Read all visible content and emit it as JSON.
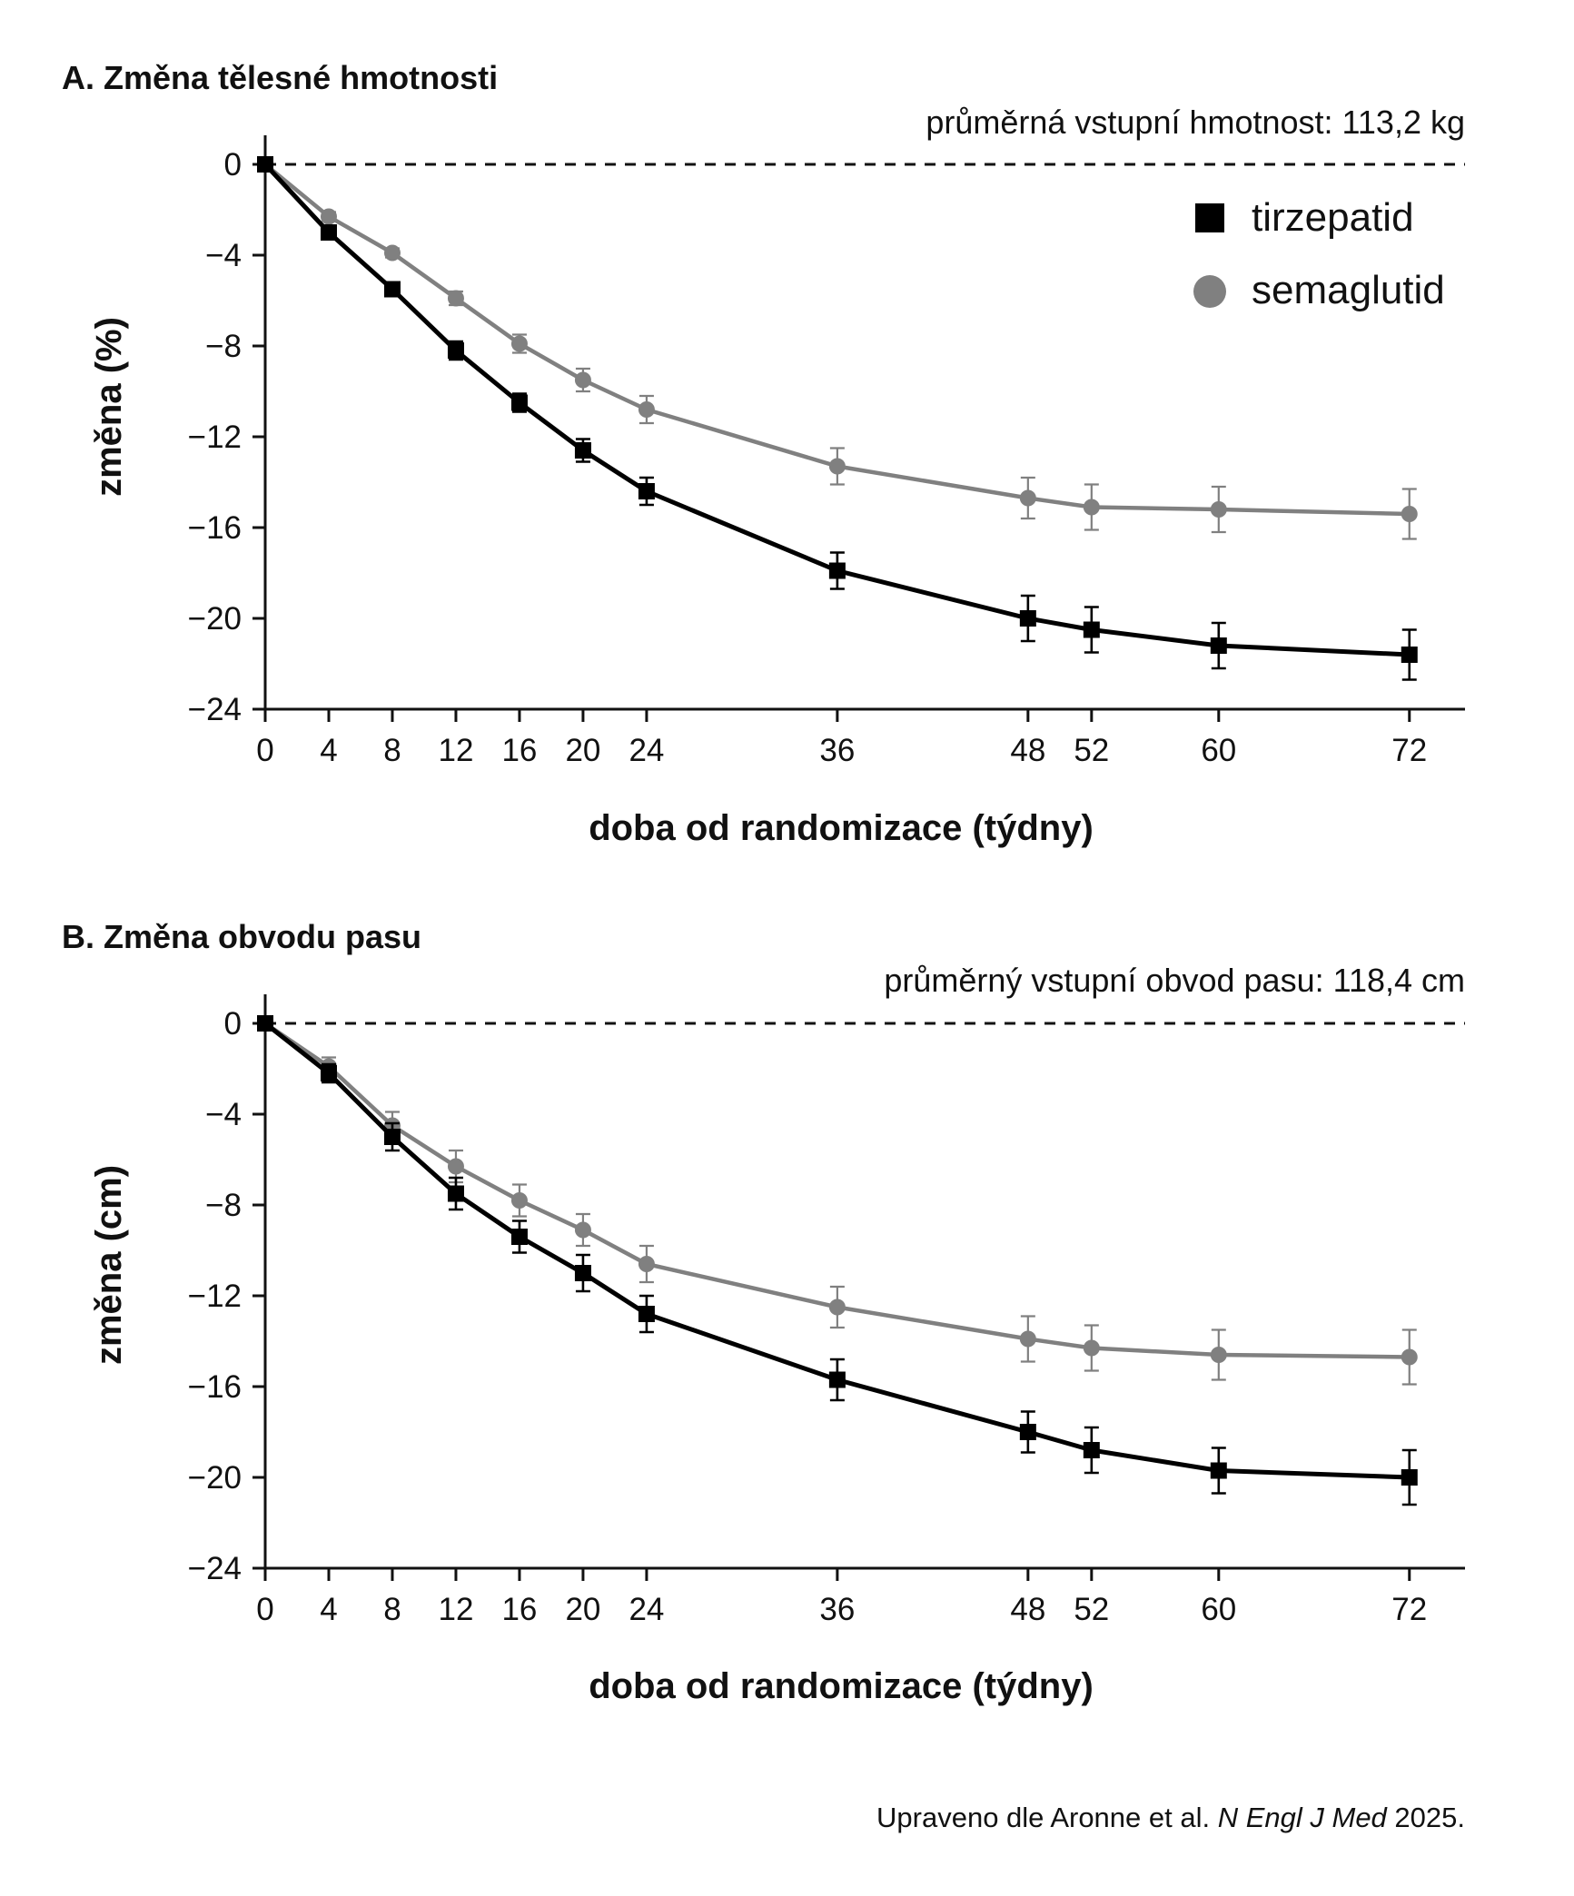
{
  "chart_data": [
    {
      "type": "line",
      "title": "A. Změna tělesné hmotnosti",
      "subtitle": "průměrná vstupní hmotnost: 113,2 kg",
      "xlabel": "doba od randomizace (týdny)",
      "ylabel": "změna (%)",
      "x_ticks": [
        0,
        4,
        8,
        12,
        16,
        20,
        24,
        36,
        48,
        52,
        60,
        72
      ],
      "y_ticks": [
        0,
        -4,
        -8,
        -12,
        -16,
        -20,
        -24
      ],
      "y_tick_labels": [
        "0",
        "−4",
        "−8",
        "−12",
        "−16",
        "−20",
        "−24"
      ],
      "xlim": [
        0,
        75.5
      ],
      "ylim": [
        -24,
        0
      ],
      "reference_line": 0,
      "legend": "top-right",
      "series": [
        {
          "name": "tirzepatid",
          "marker": "square",
          "color": "#000000",
          "x": [
            0,
            4,
            8,
            12,
            16,
            20,
            24,
            36,
            48,
            52,
            60,
            72
          ],
          "values": [
            0,
            -3.0,
            -5.5,
            -8.2,
            -10.5,
            -12.6,
            -14.4,
            -17.9,
            -20.0,
            -20.5,
            -21.2,
            -21.6
          ],
          "error": [
            0,
            0.2,
            0.3,
            0.4,
            0.4,
            0.5,
            0.6,
            0.8,
            1.0,
            1.0,
            1.0,
            1.1
          ]
        },
        {
          "name": "semaglutid",
          "marker": "circle",
          "color": "#808080",
          "x": [
            0,
            4,
            8,
            12,
            16,
            20,
            24,
            36,
            48,
            52,
            60,
            72
          ],
          "values": [
            0,
            -2.3,
            -3.9,
            -5.9,
            -7.9,
            -9.5,
            -10.8,
            -13.3,
            -14.7,
            -15.1,
            -15.2,
            -15.4
          ],
          "error": [
            0,
            0.2,
            0.2,
            0.3,
            0.4,
            0.5,
            0.6,
            0.8,
            0.9,
            1.0,
            1.0,
            1.1
          ]
        }
      ]
    },
    {
      "type": "line",
      "title": "B. Změna obvodu pasu",
      "subtitle": "průměrný vstupní obvod pasu: 118,4 cm",
      "xlabel": "doba od randomizace (týdny)",
      "ylabel": "změna (cm)",
      "x_ticks": [
        0,
        4,
        8,
        12,
        16,
        20,
        24,
        36,
        48,
        52,
        60,
        72
      ],
      "y_ticks": [
        0,
        -4,
        -8,
        -12,
        -16,
        -20,
        -24
      ],
      "y_tick_labels": [
        "0",
        "−4",
        "−8",
        "−12",
        "−16",
        "−20",
        "−24"
      ],
      "xlim": [
        0,
        75.5
      ],
      "ylim": [
        -24,
        0
      ],
      "reference_line": 0,
      "series": [
        {
          "name": "tirzepatid",
          "marker": "square",
          "color": "#000000",
          "x": [
            0,
            4,
            8,
            12,
            16,
            20,
            24,
            36,
            48,
            52,
            60,
            72
          ],
          "values": [
            0,
            -2.2,
            -5.0,
            -7.5,
            -9.4,
            -11.0,
            -12.8,
            -15.7,
            -18.0,
            -18.8,
            -19.7,
            -20.0
          ],
          "error": [
            0,
            0.4,
            0.6,
            0.7,
            0.7,
            0.8,
            0.8,
            0.9,
            0.9,
            1.0,
            1.0,
            1.2
          ]
        },
        {
          "name": "semaglutid",
          "marker": "circle",
          "color": "#808080",
          "x": [
            0,
            4,
            8,
            12,
            16,
            20,
            24,
            36,
            48,
            52,
            60,
            72
          ],
          "values": [
            0,
            -1.9,
            -4.5,
            -6.3,
            -7.8,
            -9.1,
            -10.6,
            -12.5,
            -13.9,
            -14.3,
            -14.6,
            -14.7
          ],
          "error": [
            0,
            0.4,
            0.6,
            0.7,
            0.7,
            0.7,
            0.8,
            0.9,
            1.0,
            1.0,
            1.1,
            1.2
          ]
        }
      ]
    }
  ],
  "source": {
    "prefix": "Upraveno dle Aronne et al. ",
    "journal": "N Engl J Med",
    "year": " 2025."
  }
}
